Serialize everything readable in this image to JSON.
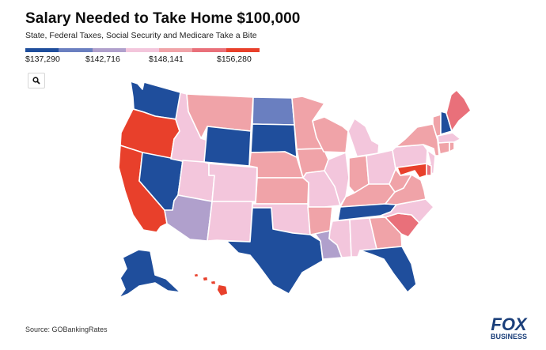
{
  "header": {
    "title": "Salary Needed to Take Home $100,000",
    "subtitle": "State, Federal Taxes, Social Security and Medicare Take a Bite"
  },
  "legend": {
    "labels": [
      "$137,290",
      "$142,716",
      "$148,141",
      "$156,280"
    ],
    "colors": [
      "#1f4e9c",
      "#6a7fc0",
      "#b0a0cc",
      "#f3c6dc",
      "#f0a3a8",
      "#e9707a",
      "#e8402b"
    ]
  },
  "toolbar": {
    "search_icon": "search-icon"
  },
  "map": {
    "states": [
      {
        "code": "WA",
        "color": "#1f4e9c"
      },
      {
        "code": "OR",
        "color": "#e8402b"
      },
      {
        "code": "CA",
        "color": "#e8402b"
      },
      {
        "code": "NV",
        "color": "#1f4e9c"
      },
      {
        "code": "ID",
        "color": "#f3c6dc"
      },
      {
        "code": "MT",
        "color": "#f0a3a8"
      },
      {
        "code": "WY",
        "color": "#1f4e9c"
      },
      {
        "code": "UT",
        "color": "#f3c6dc"
      },
      {
        "code": "AZ",
        "color": "#b0a0cc"
      },
      {
        "code": "CO",
        "color": "#f3c6dc"
      },
      {
        "code": "NM",
        "color": "#f3c6dc"
      },
      {
        "code": "ND",
        "color": "#6a7fc0"
      },
      {
        "code": "SD",
        "color": "#1f4e9c"
      },
      {
        "code": "NE",
        "color": "#f0a3a8"
      },
      {
        "code": "KS",
        "color": "#f0a3a8"
      },
      {
        "code": "OK",
        "color": "#f3c6dc"
      },
      {
        "code": "TX",
        "color": "#1f4e9c"
      },
      {
        "code": "MN",
        "color": "#f0a3a8"
      },
      {
        "code": "IA",
        "color": "#f0a3a8"
      },
      {
        "code": "MO",
        "color": "#f3c6dc"
      },
      {
        "code": "AR",
        "color": "#f0a3a8"
      },
      {
        "code": "LA",
        "color": "#b0a0cc"
      },
      {
        "code": "WI",
        "color": "#f0a3a8"
      },
      {
        "code": "IL",
        "color": "#f3c6dc"
      },
      {
        "code": "MI",
        "color": "#f3c6dc"
      },
      {
        "code": "IN",
        "color": "#f0a3a8"
      },
      {
        "code": "OH",
        "color": "#f3c6dc"
      },
      {
        "code": "KY",
        "color": "#f0a3a8"
      },
      {
        "code": "TN",
        "color": "#1f4e9c"
      },
      {
        "code": "MS",
        "color": "#f3c6dc"
      },
      {
        "code": "AL",
        "color": "#f3c6dc"
      },
      {
        "code": "GA",
        "color": "#f0a3a8"
      },
      {
        "code": "FL",
        "color": "#1f4e9c"
      },
      {
        "code": "SC",
        "color": "#e9707a"
      },
      {
        "code": "NC",
        "color": "#f3c6dc"
      },
      {
        "code": "VA",
        "color": "#f0a3a8"
      },
      {
        "code": "WV",
        "color": "#f0a3a8"
      },
      {
        "code": "PA",
        "color": "#f3c6dc"
      },
      {
        "code": "NY",
        "color": "#f0a3a8"
      },
      {
        "code": "VT",
        "color": "#f0a3a8"
      },
      {
        "code": "NH",
        "color": "#1f4e9c"
      },
      {
        "code": "ME",
        "color": "#e9707a"
      },
      {
        "code": "MA",
        "color": "#f3c6dc"
      },
      {
        "code": "CT",
        "color": "#f0a3a8"
      },
      {
        "code": "RI",
        "color": "#f0a3a8"
      },
      {
        "code": "NJ",
        "color": "#f3c6dc"
      },
      {
        "code": "DE",
        "color": "#e9707a"
      },
      {
        "code": "MD",
        "color": "#e8402b"
      },
      {
        "code": "AK",
        "color": "#1f4e9c"
      },
      {
        "code": "HI",
        "color": "#e8402b"
      }
    ]
  },
  "footer": {
    "source": "Source: GOBankingRates",
    "logo_top": "FOX",
    "logo_bottom": "BUSINESS"
  }
}
